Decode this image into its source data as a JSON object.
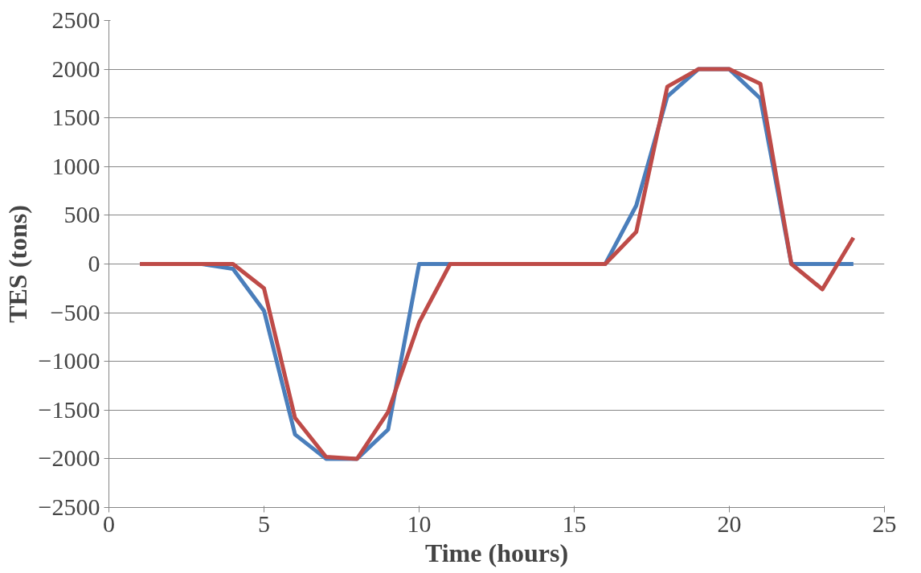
{
  "chart_data": {
    "type": "line",
    "xlabel": "Time (hours)",
    "ylabel": "TES (tons)",
    "x": [
      1,
      2,
      3,
      4,
      5,
      6,
      7,
      8,
      9,
      10,
      11,
      12,
      13,
      14,
      15,
      16,
      17,
      18,
      19,
      20,
      21,
      22,
      23,
      24
    ],
    "series": [
      {
        "color": "#4a7ebb",
        "values": [
          0,
          0,
          0,
          -50,
          -480,
          -1750,
          -2000,
          -2000,
          -1700,
          0,
          0,
          0,
          0,
          0,
          0,
          0,
          600,
          1720,
          2000,
          2000,
          1700,
          0,
          0,
          0
        ]
      },
      {
        "color": "#be4b48",
        "values": [
          0,
          0,
          0,
          0,
          -250,
          -1580,
          -1980,
          -2000,
          -1520,
          -600,
          0,
          0,
          0,
          0,
          0,
          0,
          330,
          1820,
          2000,
          2000,
          1850,
          0,
          -260,
          270
        ]
      }
    ],
    "xlim": [
      0,
      25
    ],
    "xticks": [
      0,
      5,
      10,
      15,
      20,
      25
    ],
    "ylim": [
      -2500,
      2500
    ],
    "yticks": [
      -2500,
      -2000,
      -1500,
      -1000,
      -500,
      0,
      500,
      1000,
      1500,
      2000,
      2500
    ],
    "grid": "y",
    "marker": "none",
    "line_style": "solid"
  }
}
